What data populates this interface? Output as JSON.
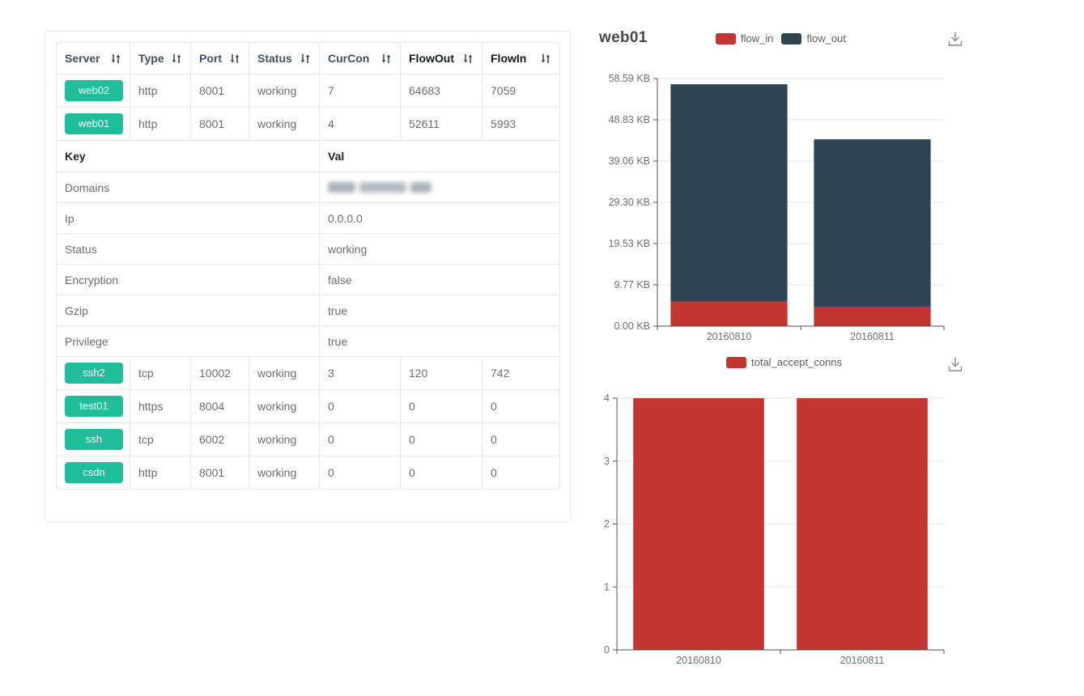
{
  "table": {
    "columns": [
      {
        "label": "Server",
        "sortable": true,
        "strong": false
      },
      {
        "label": "Type",
        "sortable": true,
        "strong": false
      },
      {
        "label": "Port",
        "sortable": true,
        "strong": false
      },
      {
        "label": "Status",
        "sortable": true,
        "strong": false
      },
      {
        "label": "CurCon",
        "sortable": true,
        "strong": false
      },
      {
        "label": "FlowOut",
        "sortable": true,
        "strong": true
      },
      {
        "label": "FlowIn",
        "sortable": true,
        "strong": true
      }
    ],
    "server_rows_top": [
      {
        "server": "web02",
        "type": "http",
        "port": "8001",
        "status": "working",
        "curcon": "7",
        "flowout": "64683",
        "flowin": "7059"
      },
      {
        "server": "web01",
        "type": "http",
        "port": "8001",
        "status": "working",
        "curcon": "4",
        "flowout": "52611",
        "flowin": "5993"
      }
    ],
    "detail_header": {
      "key": "Key",
      "val": "Val"
    },
    "detail_rows": [
      {
        "key": "Domains",
        "val": "",
        "redacted": true
      },
      {
        "key": "Ip",
        "val": "0.0.0.0"
      },
      {
        "key": "Status",
        "val": "working"
      },
      {
        "key": "Encryption",
        "val": "false"
      },
      {
        "key": "Gzip",
        "val": "true"
      },
      {
        "key": "Privilege",
        "val": "true"
      }
    ],
    "server_rows_bottom": [
      {
        "server": "ssh2",
        "type": "tcp",
        "port": "10002",
        "status": "working",
        "curcon": "3",
        "flowout": "120",
        "flowin": "742"
      },
      {
        "server": "test01",
        "type": "https",
        "port": "8004",
        "status": "working",
        "curcon": "0",
        "flowout": "0",
        "flowin": "0"
      },
      {
        "server": "ssh",
        "type": "tcp",
        "port": "6002",
        "status": "working",
        "curcon": "0",
        "flowout": "0",
        "flowin": "0"
      },
      {
        "server": "csdn",
        "type": "http",
        "port": "8001",
        "status": "working",
        "curcon": "0",
        "flowout": "0",
        "flowin": "0"
      }
    ]
  },
  "chart_data": [
    {
      "type": "bar",
      "stacked": true,
      "title": "web01",
      "categories": [
        "20160810",
        "20160811"
      ],
      "series": [
        {
          "name": "flow_in",
          "color": "#c23531",
          "values": [
            5.85,
            4.6
          ]
        },
        {
          "name": "flow_out",
          "color": "#2f4554",
          "values": [
            51.38,
            39.6
          ]
        }
      ],
      "ylim": [
        0,
        58.59
      ],
      "yticks": [
        {
          "v": 0,
          "label": "0.00 KB"
        },
        {
          "v": 9.77,
          "label": "9.77 KB"
        },
        {
          "v": 19.53,
          "label": "19.53 KB"
        },
        {
          "v": 29.3,
          "label": "29.30 KB"
        },
        {
          "v": 39.06,
          "label": "39.06 KB"
        },
        {
          "v": 48.83,
          "label": "48.83 KB"
        },
        {
          "v": 58.59,
          "label": "58.59 KB"
        }
      ],
      "unit": "KB",
      "grid": true,
      "legend_position": "top-center",
      "has_download_button": true
    },
    {
      "type": "bar",
      "stacked": false,
      "title": "",
      "categories": [
        "20160810",
        "20160811"
      ],
      "series": [
        {
          "name": "total_accept_conns",
          "color": "#c23531",
          "values": [
            4,
            4
          ]
        }
      ],
      "ylim": [
        0,
        4
      ],
      "yticks": [
        {
          "v": 0,
          "label": "0"
        },
        {
          "v": 1,
          "label": "1"
        },
        {
          "v": 2,
          "label": "2"
        },
        {
          "v": 3,
          "label": "3"
        },
        {
          "v": 4,
          "label": "4"
        }
      ],
      "grid": true,
      "legend_position": "top-center",
      "has_download_button": true
    }
  ],
  "icons": {
    "sort": "sort-asc-desc-arrows",
    "download": "save-as-image-download"
  },
  "colors": {
    "accent_green": "#20bd9a",
    "bar_red": "#c23531",
    "bar_dark": "#2f4554",
    "table_border": "#e7eaec",
    "axis_label": "#6e7079",
    "grid_line": "#e3e6ea",
    "axis_line": "#4d5257"
  }
}
